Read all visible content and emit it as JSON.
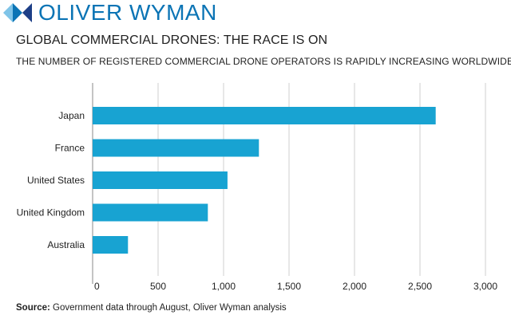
{
  "brand": {
    "name": "OLIVER WYMAN",
    "color": "#0b74b5",
    "icon": "oliver-wyman-diamond-icon"
  },
  "chart_data": {
    "type": "bar",
    "orientation": "horizontal",
    "title": "GLOBAL COMMERCIAL DRONES: THE RACE IS ON",
    "subtitle": "THE NUMBER OF REGISTERED COMMERCIAL DRONE OPERATORS IS RAPIDLY INCREASING WORLDWIDE",
    "categories": [
      "Japan",
      "France",
      "United States",
      "United Kingdom",
      "Australia"
    ],
    "values": [
      2620,
      1270,
      1030,
      880,
      270
    ],
    "xlim": [
      0,
      3000
    ],
    "xticks": [
      0,
      500,
      1000,
      1500,
      2000,
      2500,
      3000
    ],
    "xtick_labels": [
      "0",
      "500",
      "1,000",
      "1,500",
      "2,000",
      "2,500",
      "3,000"
    ],
    "xlabel": "",
    "ylabel": "",
    "grid": "vertical",
    "bar_color": "#18a3d2",
    "grid_color": "#cfcfcf"
  },
  "source": {
    "label": "Source:",
    "text": " Government data through August, Oliver Wyman analysis"
  }
}
